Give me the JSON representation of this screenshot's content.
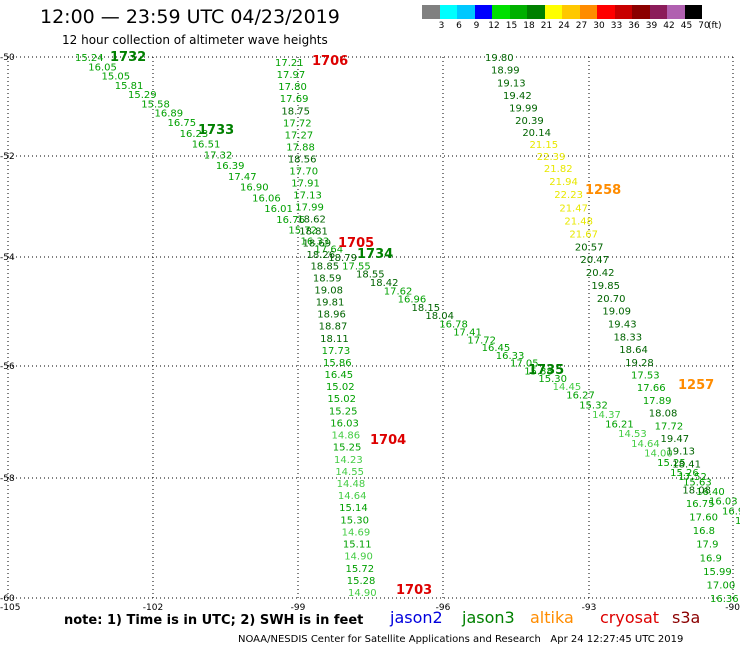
{
  "header": {
    "title": "12:00 — 23:59 UTC 04/23/2019",
    "subtitle": "12 hour collection of altimeter wave heights"
  },
  "legend": {
    "colors": [
      "#808080",
      "#00ffff",
      "#00c8ff",
      "#0000ff",
      "#00e000",
      "#00b000",
      "#008000",
      "#ffff00",
      "#ffc800",
      "#ff8c00",
      "#ff0000",
      "#c80000",
      "#8b0000",
      "#8b1c5a",
      "#b060b0",
      "#000000"
    ],
    "ticks": [
      "3",
      "6",
      "9",
      "12",
      "15",
      "18",
      "21",
      "24",
      "27",
      "30",
      "33",
      "36",
      "39",
      "42",
      "45",
      "70"
    ],
    "unit": "(ft)"
  },
  "axes": {
    "lon_ticks": [
      "-105",
      "-102",
      "-99",
      "-96",
      "-93",
      "-90"
    ],
    "lat_ticks": [
      "-50",
      "-52",
      "-54",
      "-56",
      "-58",
      "-60"
    ]
  },
  "passes": [
    {
      "time": "1732",
      "color": "#008000"
    },
    {
      "time": "1733",
      "color": "#008000"
    },
    {
      "time": "1706",
      "color": "#dd0000"
    },
    {
      "time": "1705",
      "color": "#dd0000"
    },
    {
      "time": "1734",
      "color": "#008000"
    },
    {
      "time": "1704",
      "color": "#dd0000"
    },
    {
      "time": "1703",
      "color": "#dd0000"
    },
    {
      "time": "1735",
      "color": "#008000"
    },
    {
      "time": "1258",
      "color": "#ff8c00"
    },
    {
      "time": "1257",
      "color": "#ff8c00"
    }
  ],
  "tracks": [
    {
      "name": "track-a",
      "values": [
        "15.24",
        "16.05",
        "15.05",
        "15.81",
        "15.29",
        "15.58",
        "16.89",
        "16.75",
        "16.23",
        "16.51",
        "17.32",
        "16.39",
        "17.47",
        "16.90",
        "16.06",
        "16.01",
        "16.76",
        "15.72",
        "16.33",
        "17.64",
        "18.79",
        "17.55",
        "18.55",
        "18.42",
        "17.62",
        "16.96",
        "18.15",
        "18.04",
        "16.78",
        "17.41",
        "17.72",
        "16.45",
        "16.33",
        "17.05",
        "15.38",
        "15.30",
        "14.45",
        "16.27",
        "15.32",
        "14.37",
        "16.21",
        "14.53",
        "14.64",
        "14.00",
        "15.25",
        "15.26",
        "15.63",
        "16.40",
        "16.03",
        "16.97",
        "15.84"
      ]
    },
    {
      "name": "track-b",
      "values": [
        "17.21",
        "17.97",
        "17.80",
        "17.69",
        "18.75",
        "17.72",
        "17.27",
        "17.88",
        "18.56",
        "17.70",
        "17.91",
        "17.13",
        "17.99",
        "18.62",
        "18.81",
        "18.69",
        "18.26",
        "18.85",
        "18.59",
        "19.08",
        "19.81",
        "18.96",
        "18.87",
        "18.11",
        "17.73",
        "15.86",
        "16.45",
        "15.02",
        "15.02",
        "15.25",
        "16.03",
        "14.86",
        "15.25",
        "14.23",
        "14.55",
        "14.48",
        "14.64",
        "15.14",
        "15.30",
        "14.69",
        "15.11",
        "14.90",
        "15.72",
        "15.28",
        "14.90"
      ]
    },
    {
      "name": "track-c",
      "values": [
        "19.80",
        "18.99",
        "19.13",
        "19.42",
        "19.99",
        "20.39",
        "20.14",
        "21.15",
        "22.39",
        "21.82",
        "21.94",
        "22.23",
        "21.47",
        "21.48",
        "21.67",
        "20.57",
        "20.47",
        "20.42",
        "19.85",
        "20.70",
        "19.09",
        "19.43",
        "18.33",
        "18.64",
        "19.28",
        "17.53",
        "17.66",
        "17.89",
        "18.08",
        "17.72",
        "19.47",
        "19.13",
        "18.41",
        "17.52",
        "18.08",
        "16.75",
        "17.60",
        "16.8",
        "17.9",
        "16.9",
        "15.99",
        "17.00",
        "16.36"
      ]
    }
  ],
  "note": "note: 1) Time is in UTC; 2) SWH is in feet",
  "satellites": [
    {
      "name": "jason2",
      "color": "#0000dd"
    },
    {
      "name": "jason3",
      "color": "#008000"
    },
    {
      "name": "altika",
      "color": "#ff8c00"
    },
    {
      "name": "cryosat",
      "color": "#dd0000"
    },
    {
      "name": "s3a",
      "color": "#8b0000"
    }
  ],
  "footer": {
    "credit": "NOAA/NESDIS Center for Satellite Applications and Research",
    "timestamp": "Apr 24 12:27:45 UTC 2019"
  }
}
